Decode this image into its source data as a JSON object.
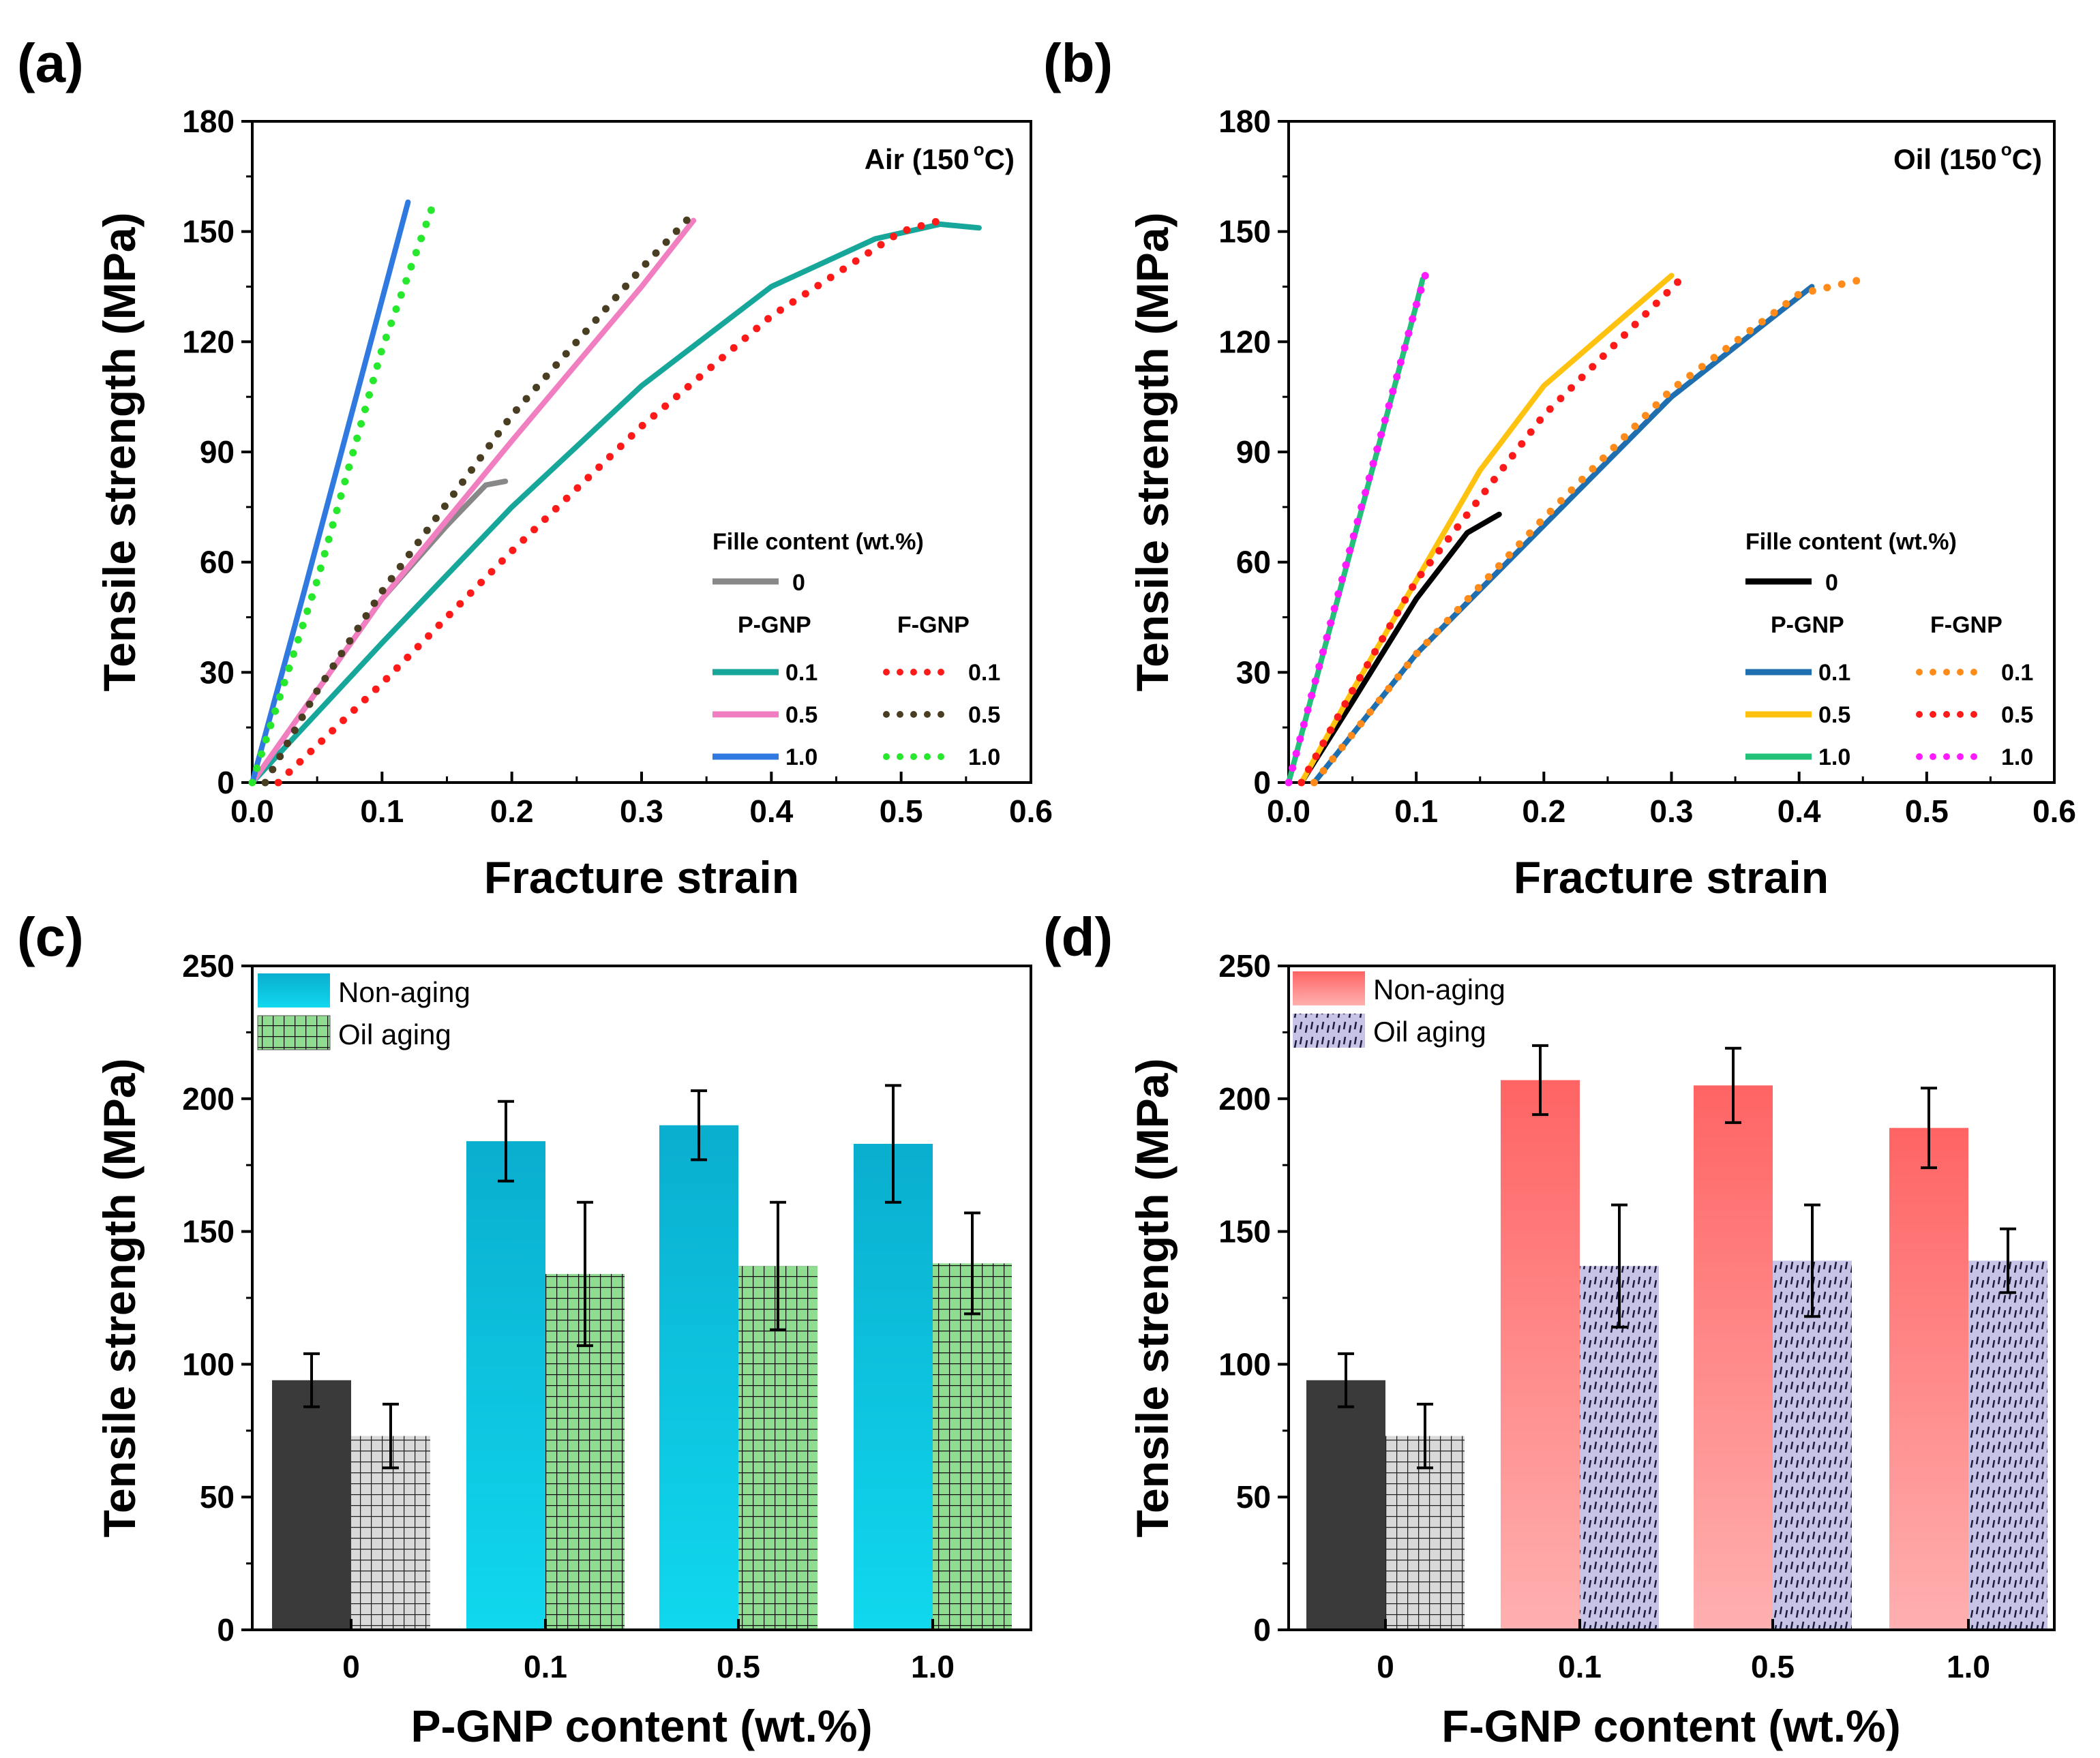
{
  "panels": {
    "a": {
      "letter": "(a)"
    },
    "b": {
      "letter": "(b)"
    },
    "c": {
      "letter": "(c)"
    },
    "d": {
      "letter": "(d)"
    }
  },
  "colors": {
    "pure": "#888888",
    "pure_b": "#000000",
    "pgnp_01": "#16a79a",
    "pgnp_05": "#f07ec0",
    "pgnp_10": "#2f79e0",
    "fgnp_01": "#ff1a1a",
    "fgnp_05": "#4a3e22",
    "fgnp_10": "#27e82c",
    "b_pgnp_01": "#1f6fb0",
    "b_pgnp_05": "#ffc20e",
    "b_pgnp_10": "#23c07a",
    "b_fgnp_01": "#ff8c1a",
    "b_fgnp_05": "#ff1a1a",
    "b_fgnp_10": "#ff1aff",
    "bar_dark": "#3a3a3a",
    "bar_cyan": "#10c4e2",
    "bar_green": "#90dc90",
    "bar_red": "#ff7070",
    "bar_lavender": "#c7c3e6"
  },
  "chart_data": [
    {
      "id": "a",
      "type": "line",
      "inset_title": "Air (150",
      "inset_sup": "o",
      "inset_tail": "C)",
      "xlabel": "Fracture strain",
      "ylabel": "Tensile strength (MPa)",
      "xlim": [
        0,
        0.6
      ],
      "ylim": [
        0,
        180
      ],
      "xticks": [
        "0.0",
        "0.1",
        "0.2",
        "0.3",
        "0.4",
        "0.5",
        "0.6"
      ],
      "yticks": [
        "0",
        "30",
        "60",
        "90",
        "120",
        "150",
        "180"
      ],
      "legend": {
        "title": "Fille content (wt.%)",
        "col1": "P-GNP",
        "col2": "F-GNP",
        "pure": "0",
        "rows": [
          "0.1",
          "0.5",
          "1.0"
        ]
      },
      "series": [
        {
          "name": "0",
          "group": "pure",
          "style": "solid",
          "color_key": "pure",
          "x": [
            0,
            0.05,
            0.1,
            0.15,
            0.18,
            0.195
          ],
          "y": [
            0,
            25,
            50,
            70,
            81,
            82
          ]
        },
        {
          "name": "P-GNP 0.1",
          "group": "P-GNP",
          "style": "solid",
          "color_key": "pgnp_01",
          "x": [
            0,
            0.1,
            0.2,
            0.3,
            0.4,
            0.48,
            0.53,
            0.56
          ],
          "y": [
            0,
            38,
            75,
            108,
            135,
            148,
            152,
            151
          ]
        },
        {
          "name": "P-GNP 0.5",
          "group": "P-GNP",
          "style": "solid",
          "color_key": "pgnp_05",
          "x": [
            0,
            0.1,
            0.2,
            0.3,
            0.34
          ],
          "y": [
            0,
            50,
            93,
            135,
            153
          ]
        },
        {
          "name": "P-GNP 1.0",
          "group": "P-GNP",
          "style": "solid",
          "color_key": "pgnp_10",
          "x": [
            0,
            0.04,
            0.08,
            0.12
          ],
          "y": [
            0,
            52,
            105,
            158
          ]
        },
        {
          "name": "F-GNP 0.1",
          "group": "F-GNP",
          "style": "dotted",
          "color_key": "fgnp_01",
          "x": [
            0.02,
            0.1,
            0.2,
            0.3,
            0.4,
            0.5,
            0.53
          ],
          "y": [
            0,
            27,
            63,
            97,
            127,
            150,
            153
          ]
        },
        {
          "name": "F-GNP 0.5",
          "group": "F-GNP",
          "style": "dotted",
          "color_key": "fgnp_05",
          "x": [
            0.01,
            0.05,
            0.1,
            0.2,
            0.3,
            0.34
          ],
          "y": [
            0,
            25,
            52,
            100,
            140,
            155
          ]
        },
        {
          "name": "F-GNP 1.0",
          "group": "F-GNP",
          "style": "dotted",
          "color_key": "fgnp_10",
          "x": [
            0,
            0.05,
            0.1,
            0.14
          ],
          "y": [
            0,
            55,
            118,
            158
          ]
        }
      ]
    },
    {
      "id": "b",
      "type": "line",
      "inset_title": "Oil (150",
      "inset_sup": "o",
      "inset_tail": "C)",
      "xlabel": "Fracture strain",
      "ylabel": "Tensile strength (MPa)",
      "xlim": [
        0,
        0.6
      ],
      "ylim": [
        0,
        180
      ],
      "xticks": [
        "0.0",
        "0.1",
        "0.2",
        "0.3",
        "0.4",
        "0.5",
        "0.6"
      ],
      "yticks": [
        "0",
        "30",
        "60",
        "90",
        "120",
        "150",
        "180"
      ],
      "legend": {
        "title": "Fille content (wt.%)",
        "col1": "P-GNP",
        "col2": "F-GNP",
        "pure": "0",
        "rows": [
          "0.1",
          "0.5",
          "1.0"
        ]
      },
      "series": [
        {
          "name": "0",
          "group": "pure",
          "style": "solid",
          "color_key": "pure_b",
          "x": [
            0.01,
            0.05,
            0.1,
            0.14,
            0.165
          ],
          "y": [
            0,
            22,
            50,
            68,
            73
          ]
        },
        {
          "name": "P-GNP 0.1",
          "group": "P-GNP",
          "style": "solid",
          "color_key": "b_pgnp_01",
          "x": [
            0.02,
            0.1,
            0.2,
            0.3,
            0.41
          ],
          "y": [
            0,
            35,
            70,
            105,
            135
          ]
        },
        {
          "name": "P-GNP 0.5",
          "group": "P-GNP",
          "style": "solid",
          "color_key": "b_pgnp_05",
          "x": [
            0.01,
            0.05,
            0.1,
            0.15,
            0.2,
            0.3
          ],
          "y": [
            0,
            25,
            55,
            85,
            108,
            138
          ]
        },
        {
          "name": "P-GNP 1.0",
          "group": "P-GNP",
          "style": "solid",
          "color_key": "b_pgnp_10",
          "x": [
            0,
            0.05,
            0.1,
            0.105
          ],
          "y": [
            0,
            65,
            130,
            137
          ]
        },
        {
          "name": "F-GNP 0.1",
          "group": "F-GNP",
          "style": "dotted",
          "color_key": "b_fgnp_01",
          "x": [
            0.02,
            0.1,
            0.2,
            0.3,
            0.4,
            0.45
          ],
          "y": [
            0,
            35,
            72,
            107,
            133,
            137
          ]
        },
        {
          "name": "F-GNP 0.5",
          "group": "F-GNP",
          "style": "dotted",
          "color_key": "b_fgnp_05",
          "x": [
            0.01,
            0.05,
            0.1,
            0.2,
            0.31
          ],
          "y": [
            0,
            25,
            55,
            100,
            138
          ]
        },
        {
          "name": "F-GNP 1.0",
          "group": "F-GNP",
          "style": "dotted",
          "color_key": "b_fgnp_10",
          "x": [
            0,
            0.05,
            0.1,
            0.107
          ],
          "y": [
            0,
            66,
            130,
            138
          ]
        }
      ]
    },
    {
      "id": "c",
      "type": "bar",
      "xlabel": "P-GNP content (wt.%)",
      "ylabel": "Tensile strength (MPa)",
      "ylim": [
        0,
        250
      ],
      "yticks": [
        "0",
        "50",
        "100",
        "150",
        "200",
        "250"
      ],
      "categories": [
        "0",
        "0.1",
        "0.5",
        "1.0"
      ],
      "legend": [
        "Non-aging",
        "Oil aging"
      ],
      "series": [
        {
          "name": "Non-aging",
          "values": [
            94,
            184,
            190,
            183
          ],
          "errors": [
            10,
            15,
            13,
            22
          ]
        },
        {
          "name": "Oil aging",
          "values": [
            73,
            134,
            137,
            138
          ],
          "errors": [
            12,
            27,
            24,
            19
          ]
        }
      ]
    },
    {
      "id": "d",
      "type": "bar",
      "xlabel": "F-GNP content (wt.%)",
      "ylabel": "Tensile strength (MPa)",
      "ylim": [
        0,
        250
      ],
      "yticks": [
        "0",
        "50",
        "100",
        "150",
        "200",
        "250"
      ],
      "categories": [
        "0",
        "0.1",
        "0.5",
        "1.0"
      ],
      "legend": [
        "Non-aging",
        "Oil aging"
      ],
      "series": [
        {
          "name": "Non-aging",
          "values": [
            94,
            207,
            205,
            189
          ],
          "errors": [
            10,
            13,
            14,
            15
          ]
        },
        {
          "name": "Oil aging",
          "values": [
            73,
            137,
            139,
            139
          ],
          "errors": [
            12,
            23,
            21,
            12
          ]
        }
      ]
    }
  ]
}
